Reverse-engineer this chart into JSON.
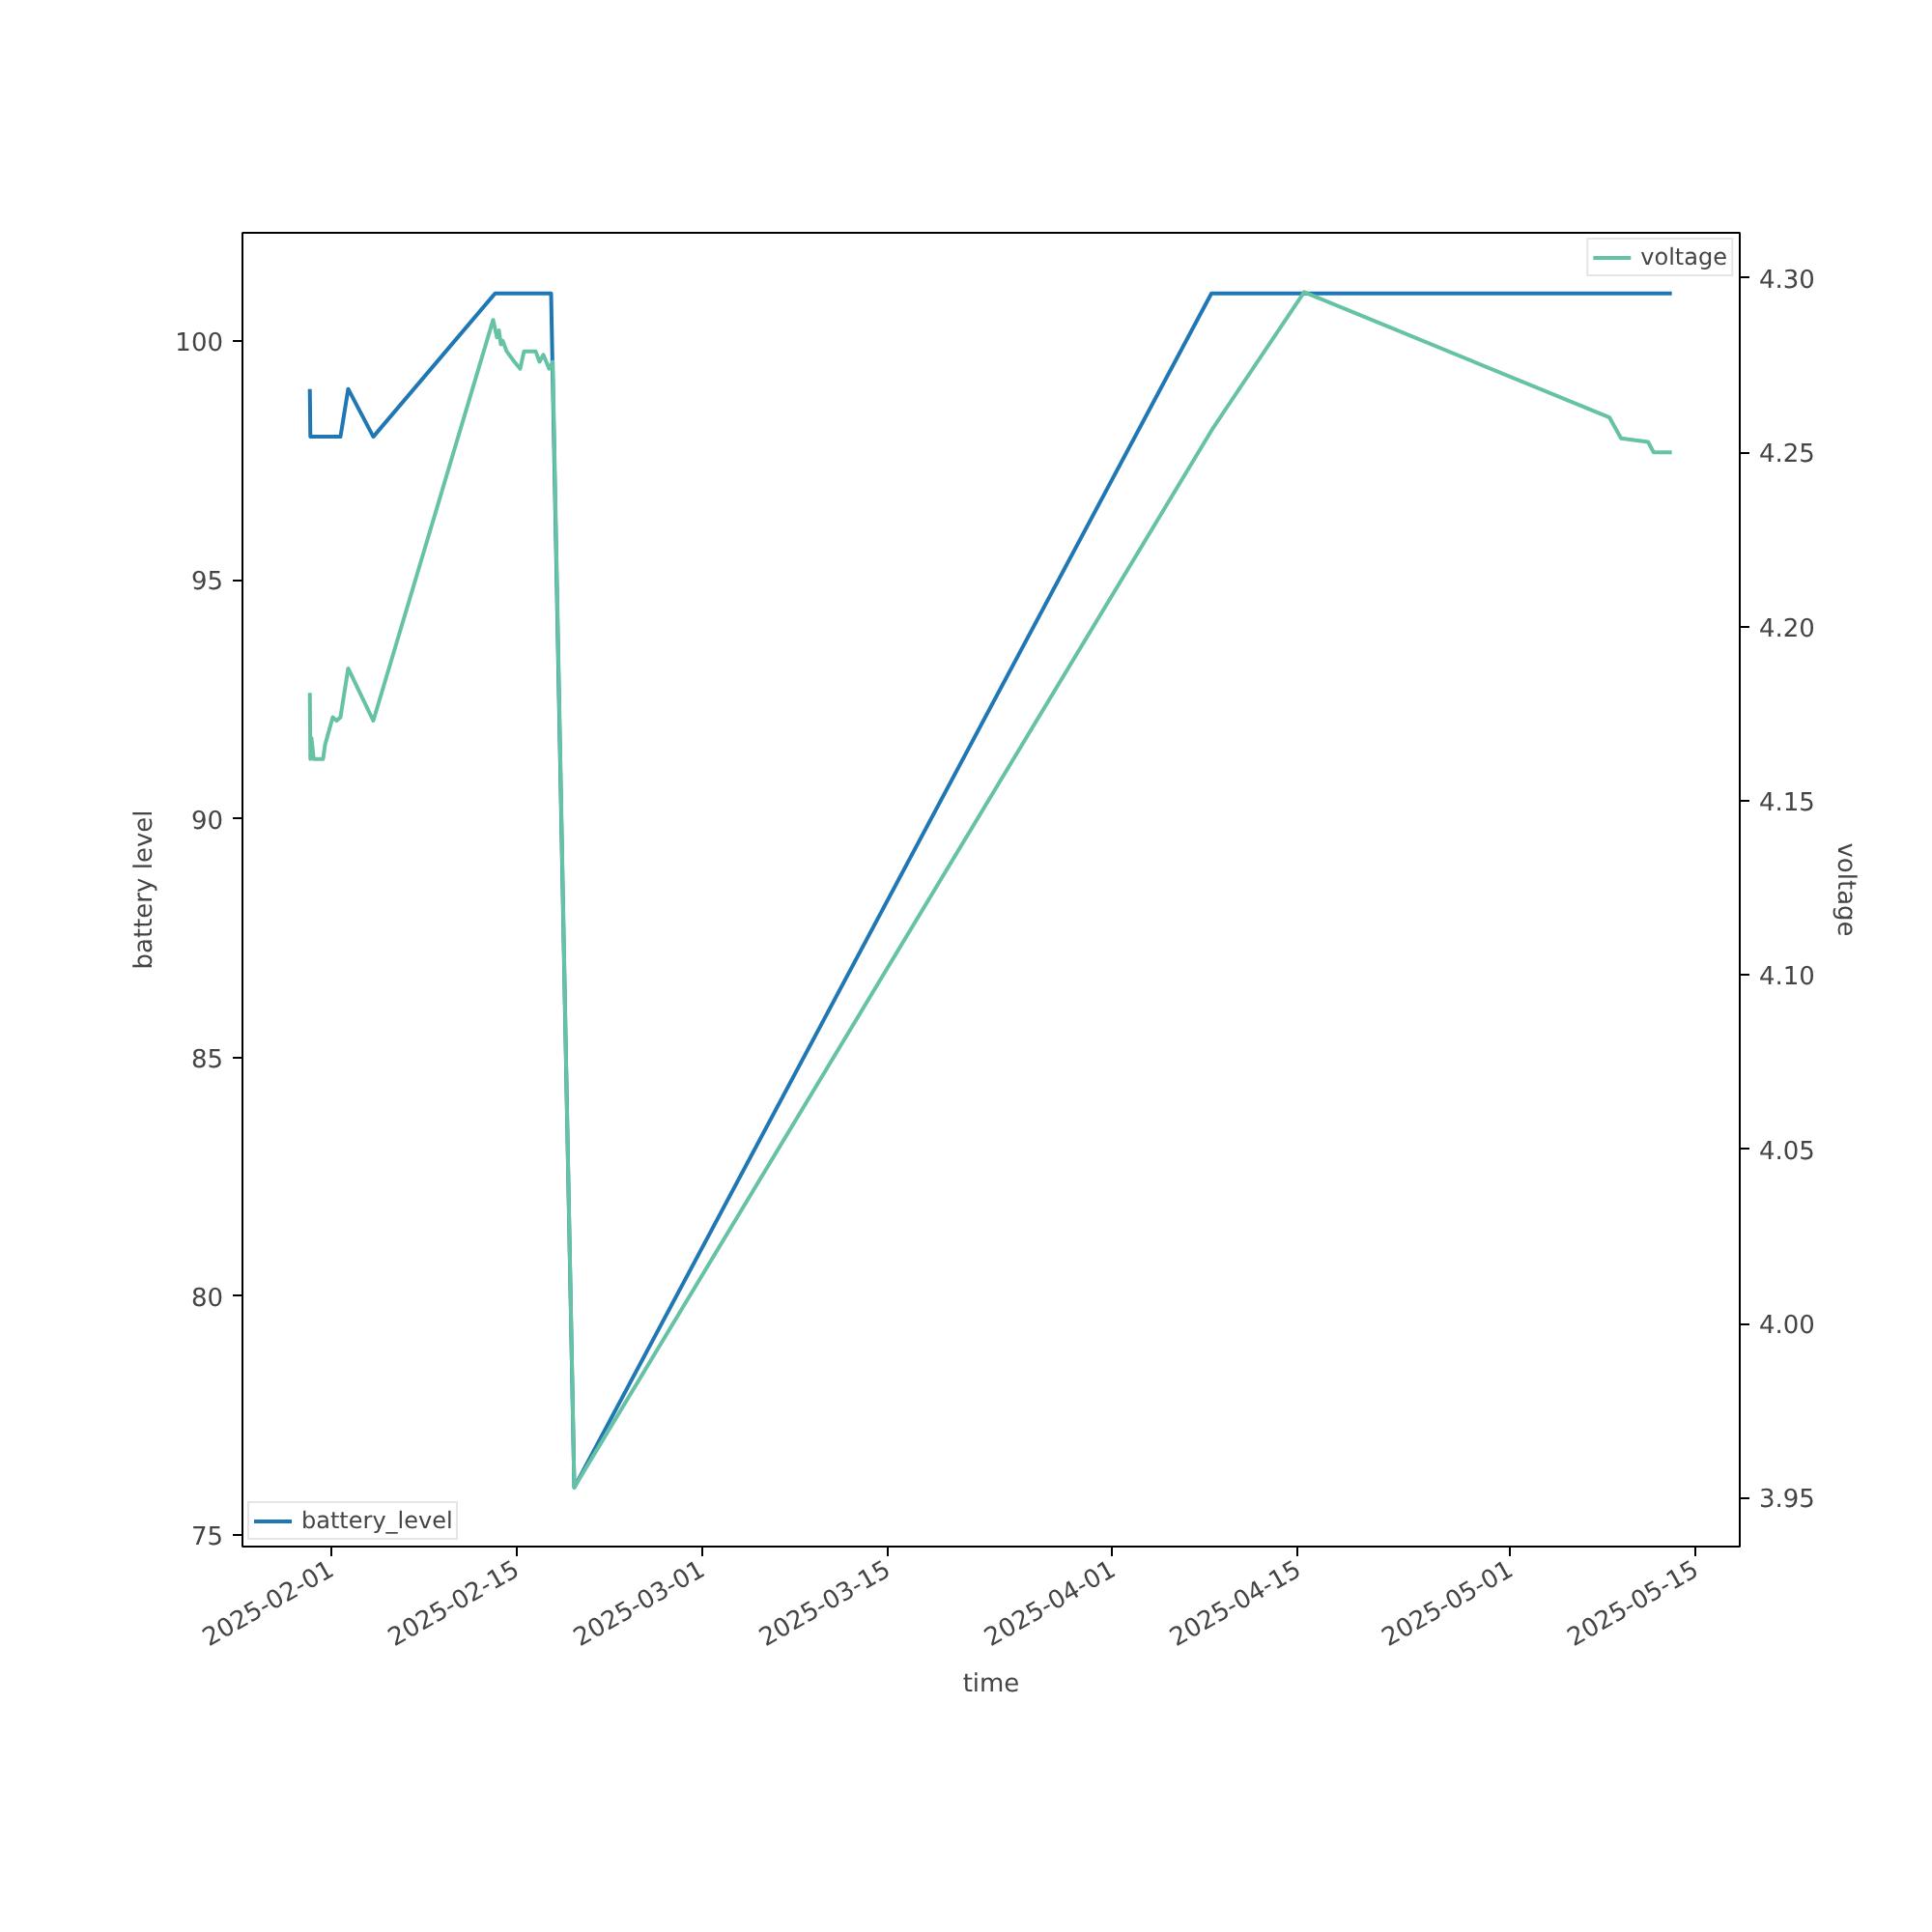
{
  "chart_data": {
    "type": "line",
    "xlabel": "time",
    "ylabel": "battery level",
    "y2label": "voltage",
    "xlim": [
      "2025-01-25T08:00",
      "2025-05-18T08:00"
    ],
    "xticks": [
      {
        "value": "2025-02-01",
        "label": "2025-02-01"
      },
      {
        "value": "2025-02-15",
        "label": "2025-02-15"
      },
      {
        "value": "2025-03-01",
        "label": "2025-03-01"
      },
      {
        "value": "2025-03-15",
        "label": "2025-03-15"
      },
      {
        "value": "2025-04-01",
        "label": "2025-04-01"
      },
      {
        "value": "2025-04-15",
        "label": "2025-04-15"
      },
      {
        "value": "2025-05-01",
        "label": "2025-05-01"
      },
      {
        "value": "2025-05-15",
        "label": "2025-05-15"
      }
    ],
    "ylim": [
      74.76,
      102.27
    ],
    "yticks": [
      75,
      80,
      85,
      90,
      95,
      100
    ],
    "y2lim": [
      3.936,
      4.313
    ],
    "y2ticks": [
      3.95,
      {
        "value": 4.0,
        "label": "4.00"
      },
      4.05,
      {
        "value": 4.1,
        "label": "4.10"
      },
      4.15,
      {
        "value": 4.2,
        "label": "4.20"
      },
      4.25,
      {
        "value": 4.3,
        "label": "4.30"
      }
    ],
    "grid": false,
    "line_style": "solid",
    "marker": "none",
    "legend": [
      "bottom left",
      "top right"
    ],
    "series": [
      {
        "name": "battery_level",
        "color": "#1f77b4",
        "x": [
          "2025-01-30T10:00",
          "2025-01-30T11:00",
          "2025-02-01T17:30",
          "2025-02-02T07:30",
          "2025-02-04T05:00",
          "2025-02-13T09:30",
          "2025-02-17T15:00",
          "2025-02-19T09:00",
          "2025-04-08T11:00",
          "2025-05-13T05:00"
        ],
        "values": [
          99,
          98,
          98,
          99,
          98,
          101,
          101,
          76,
          101,
          101
        ]
      },
      {
        "name": "voltage",
        "color": "#66c2a5",
        "axis": "y2",
        "x": [
          "2025-01-30T10:00",
          "2025-01-30T11:00",
          "2025-01-30T13:00",
          "2025-01-30T17:00",
          "2025-01-31T10:00",
          "2025-01-31T13:30",
          "2025-01-31T17:00",
          "2025-02-01T03:30",
          "2025-02-01T10:30",
          "2025-02-01T17:30",
          "2025-02-02T07:30",
          "2025-02-04T05:00",
          "2025-02-13T06:00",
          "2025-02-13T13:00",
          "2025-02-13T16:30",
          "2025-02-13T20:00",
          "2025-02-13T23:30",
          "2025-02-14T06:30",
          "2025-02-14T20:30",
          "2025-02-15T07:00",
          "2025-02-15T14:00",
          "2025-02-16T00:30",
          "2025-02-16T11:00",
          "2025-02-16T18:00",
          "2025-02-17T01:00",
          "2025-02-17T11:30",
          "2025-02-17T18:00",
          "2025-02-19T09:00",
          "2025-04-08T14:00",
          "2025-04-15T11:00",
          "2025-05-08T12:00",
          "2025-05-09T09:00",
          "2025-05-11T10:00",
          "2025-05-11T20:00",
          "2025-05-13T05:00"
        ],
        "values": [
          4.181,
          4.162,
          4.168,
          4.162,
          4.162,
          4.166,
          4.168,
          4.174,
          4.173,
          4.174,
          4.188,
          4.173,
          4.288,
          4.283,
          4.285,
          4.281,
          4.282,
          4.279,
          4.276,
          4.274,
          4.279,
          4.279,
          4.279,
          4.276,
          4.278,
          4.274,
          4.276,
          3.953,
          4.257,
          4.296,
          4.26,
          4.254,
          4.253,
          4.25,
          4.25
        ]
      }
    ]
  }
}
